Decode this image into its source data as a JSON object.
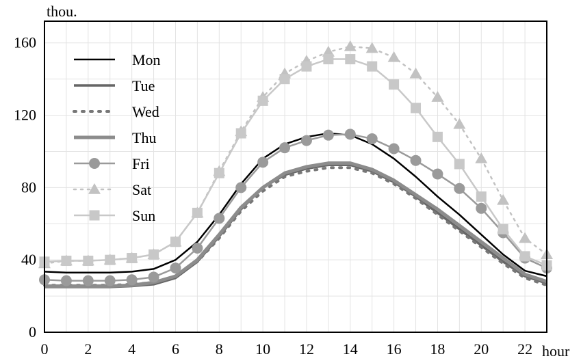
{
  "chart_data": {
    "type": "line",
    "title": "",
    "xlabel": "hour",
    "ylabel": "thou.",
    "xlim": [
      0,
      23
    ],
    "ylim": [
      0,
      172
    ],
    "x_ticks": [
      0,
      2,
      4,
      6,
      8,
      10,
      12,
      14,
      16,
      18,
      20,
      22
    ],
    "y_ticks": [
      0,
      40,
      80,
      120,
      160
    ],
    "grid": true,
    "legend_position": "top-left",
    "x": [
      0,
      1,
      2,
      3,
      4,
      5,
      6,
      7,
      8,
      9,
      10,
      11,
      12,
      13,
      14,
      15,
      16,
      17,
      18,
      19,
      20,
      21,
      22,
      23
    ],
    "series": [
      {
        "name": "Mon",
        "color": "#000000",
        "dash": "solid",
        "width": 2.5,
        "marker": "none",
        "values": [
          33.5,
          33,
          33,
          33,
          33.5,
          35,
          40,
          50,
          65,
          82,
          96,
          104,
          108,
          110,
          109,
          104,
          96,
          86,
          75,
          65,
          54,
          43,
          34,
          31
        ]
      },
      {
        "name": "Tue",
        "color": "#666666",
        "dash": "solid",
        "width": 3.5,
        "marker": "none",
        "values": [
          25,
          25,
          25,
          25,
          25.5,
          26.5,
          30,
          39,
          53,
          68,
          80,
          87,
          90.5,
          92.5,
          92.5,
          89,
          83,
          75,
          66,
          57,
          48,
          39,
          31,
          27
        ]
      },
      {
        "name": "Wed",
        "color": "#777777",
        "dash": "dotted",
        "width": 4,
        "marker": "none",
        "values": [
          26,
          26,
          26,
          26,
          26.5,
          27.5,
          31,
          39,
          52,
          67,
          78,
          86,
          89,
          91,
          91,
          88,
          82,
          74,
          65,
          56,
          47,
          38,
          30,
          26
        ]
      },
      {
        "name": "Thu",
        "color": "#8c8c8c",
        "dash": "solid",
        "width": 5,
        "marker": "none",
        "values": [
          25.5,
          25.5,
          25.5,
          25.5,
          26,
          27.5,
          31,
          40,
          54,
          69,
          80,
          88,
          91.5,
          93.5,
          93.5,
          90,
          84,
          76,
          68,
          59,
          50,
          41,
          32,
          28
        ]
      },
      {
        "name": "Fri",
        "color": "#9a9a9a",
        "dash": "solid",
        "width": 2.5,
        "marker": "circle",
        "values": [
          29,
          28.5,
          28.5,
          28.5,
          29,
          30.5,
          35.5,
          46.5,
          63,
          80,
          94,
          102,
          106,
          109,
          109.5,
          107,
          101.5,
          95,
          87.5,
          79.5,
          68.5,
          55,
          41,
          35.5
        ]
      },
      {
        "name": "Sat",
        "color": "#c2c2c2",
        "dash": "dotted",
        "width": 2.5,
        "marker": "triangle",
        "values": [
          38,
          39.5,
          39.5,
          40,
          41,
          43,
          50,
          66,
          89,
          111,
          130,
          143,
          150,
          155,
          158,
          157,
          152,
          143,
          130,
          115,
          96,
          73,
          52,
          43
        ]
      },
      {
        "name": "Sun",
        "color": "#c8c8c8",
        "dash": "solid",
        "width": 2.5,
        "marker": "square",
        "values": [
          39,
          39.5,
          39.5,
          40,
          41,
          43,
          50,
          66,
          88,
          110,
          128,
          140,
          147,
          151,
          151,
          147,
          137,
          124,
          108,
          93,
          75,
          57,
          42,
          37
        ]
      }
    ]
  }
}
